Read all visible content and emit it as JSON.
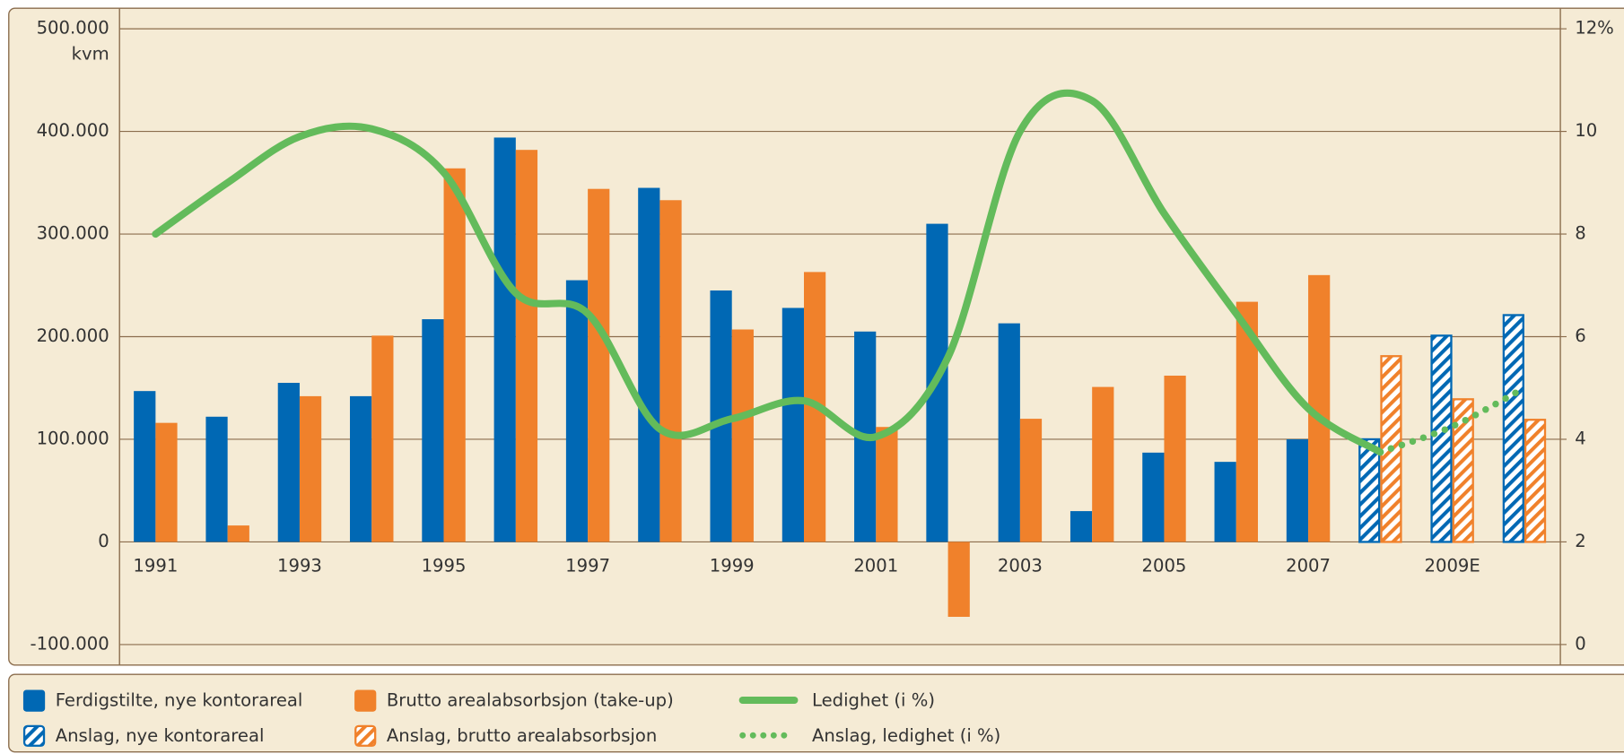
{
  "chart_data": {
    "type": "bar",
    "ylabel": "kvm",
    "categories": [
      "1991",
      null,
      "1993",
      null,
      "1995",
      null,
      "1997",
      null,
      "1999",
      null,
      "2001",
      null,
      "2003",
      null,
      "2005",
      null,
      "2007",
      null,
      "2009E",
      null
    ],
    "series": [
      {
        "name": "Ferdigstilte, nye kontorareal",
        "type": "bar",
        "pattern": "solid",
        "color": "#0068b4",
        "values": [
          147000,
          122000,
          155000,
          142000,
          217000,
          394000,
          255000,
          345000,
          245000,
          228000,
          205000,
          310000,
          213000,
          30000,
          87000,
          78000,
          100000,
          null,
          null,
          null
        ]
      },
      {
        "name": "Brutto arealabsorbsjon (take-up)",
        "type": "bar",
        "pattern": "solid",
        "color": "#f0812b",
        "values": [
          116000,
          16000,
          142000,
          201000,
          364000,
          382000,
          344000,
          333000,
          207000,
          263000,
          112000,
          -73000,
          120000,
          151000,
          162000,
          234000,
          260000,
          null,
          null,
          null
        ]
      },
      {
        "name": "Ledighet (i %)",
        "type": "line",
        "pattern": "solid",
        "axis": "y2",
        "color": "#63bb5b",
        "values": [
          8.0,
          9.0,
          9.9,
          10.05,
          9.2,
          6.85,
          6.45,
          4.2,
          4.4,
          4.75,
          4.05,
          5.6,
          10.0,
          10.6,
          8.4,
          6.45,
          4.6,
          3.75,
          null,
          null
        ]
      },
      {
        "name": "Anslag, nye kontorareal",
        "type": "bar",
        "pattern": "hatched",
        "color": "#0068b4",
        "values": [
          null,
          null,
          null,
          null,
          null,
          null,
          null,
          null,
          null,
          null,
          null,
          null,
          null,
          null,
          null,
          null,
          null,
          100000,
          201000,
          221000
        ]
      },
      {
        "name": "Anslag, brutto arealabsorbsjon",
        "type": "bar",
        "pattern": "hatched",
        "color": "#f0812b",
        "values": [
          null,
          null,
          null,
          null,
          null,
          null,
          null,
          null,
          null,
          null,
          null,
          null,
          null,
          null,
          null,
          null,
          null,
          181000,
          139000,
          119000
        ]
      },
      {
        "name": "Anslag, ledighet (i %)",
        "type": "line",
        "pattern": "dotted",
        "axis": "y2",
        "color": "#63bb5b",
        "values": [
          null,
          null,
          null,
          null,
          null,
          null,
          null,
          null,
          null,
          null,
          null,
          null,
          null,
          null,
          null,
          null,
          null,
          3.75,
          4.25,
          5.0
        ]
      }
    ],
    "ylim": [
      -120000,
      520000
    ],
    "yticks": [
      {
        "value": -100000,
        "label": "-100.000"
      },
      0,
      {
        "value": 100000,
        "label": "100.000"
      },
      {
        "value": 200000,
        "label": "200.000"
      },
      {
        "value": 300000,
        "label": "300.000"
      },
      {
        "value": 400000,
        "label": "400.000"
      },
      {
        "value": 500000,
        "label": "500.000"
      }
    ],
    "y2lim": [
      -0.4,
      12.4
    ],
    "y2ticks": [
      0,
      2,
      4,
      6,
      8,
      10,
      {
        "value": 12,
        "label": "12%"
      }
    ],
    "grid": true
  }
}
